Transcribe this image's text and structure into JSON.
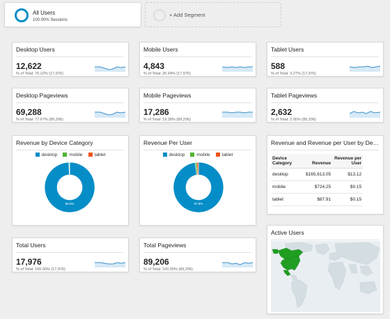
{
  "segments": {
    "active": {
      "name": "All Users",
      "sub": "100.00% Sessions"
    },
    "add_label": "+ Add Segment"
  },
  "colors": {
    "desktop": "#058dc7",
    "mobile": "#50b432",
    "tablet": "#ed561b",
    "spark_line": "#3a8fc7"
  },
  "metrics": [
    {
      "title": "Desktop Users",
      "value": "12,622",
      "sub": "% of Total: 70.22% (17,976)"
    },
    {
      "title": "Mobile Users",
      "value": "4,843",
      "sub": "% of Total: 26.94% (17,976)"
    },
    {
      "title": "Tablet Users",
      "value": "588",
      "sub": "% of Total: 3.27% (17,976)"
    },
    {
      "title": "Desktop Pageviews",
      "value": "69,288",
      "sub": "% of Total: 77.67% (89,206)"
    },
    {
      "title": "Mobile Pageviews",
      "value": "17,286",
      "sub": "% of Total: 19.38% (89,206)"
    },
    {
      "title": "Tablet Pageviews",
      "value": "2,632",
      "sub": "% of Total: 2.95% (89,206)"
    },
    {
      "title": "Total Users",
      "value": "17,976",
      "sub": "% of Total: 100.00% (17,976)"
    },
    {
      "title": "Total Pageviews",
      "value": "89,206",
      "sub": "% of Total: 100.00% (89,206)"
    }
  ],
  "legend": {
    "desktop": "desktop",
    "mobile": "mobile",
    "tablet": "tablet"
  },
  "chart_data": [
    {
      "type": "pie",
      "title": "Revenue by Device Category",
      "categories": [
        "desktop",
        "mobile",
        "tablet"
      ],
      "values": [
        99.5,
        0.4,
        0.1
      ],
      "center_label": "99.5%"
    },
    {
      "type": "pie",
      "title": "Revenue Per User",
      "categories": [
        "desktop",
        "mobile",
        "tablet"
      ],
      "values": [
        97.8,
        1.1,
        1.1
      ],
      "center_label": "97.8%"
    }
  ],
  "revenue_table": {
    "title": "Revenue and Revenue per User by Devic...",
    "headers": [
      "Device Category",
      "Revenue",
      "Revenue per User"
    ],
    "rows": [
      [
        "desktop",
        "$165,613.05",
        "$13.12"
      ],
      [
        "mobile",
        "$724.25",
        "$0.15"
      ],
      [
        "tablet",
        "$87.91",
        "$0.15"
      ]
    ]
  },
  "active_users": {
    "title": "Active Users"
  }
}
